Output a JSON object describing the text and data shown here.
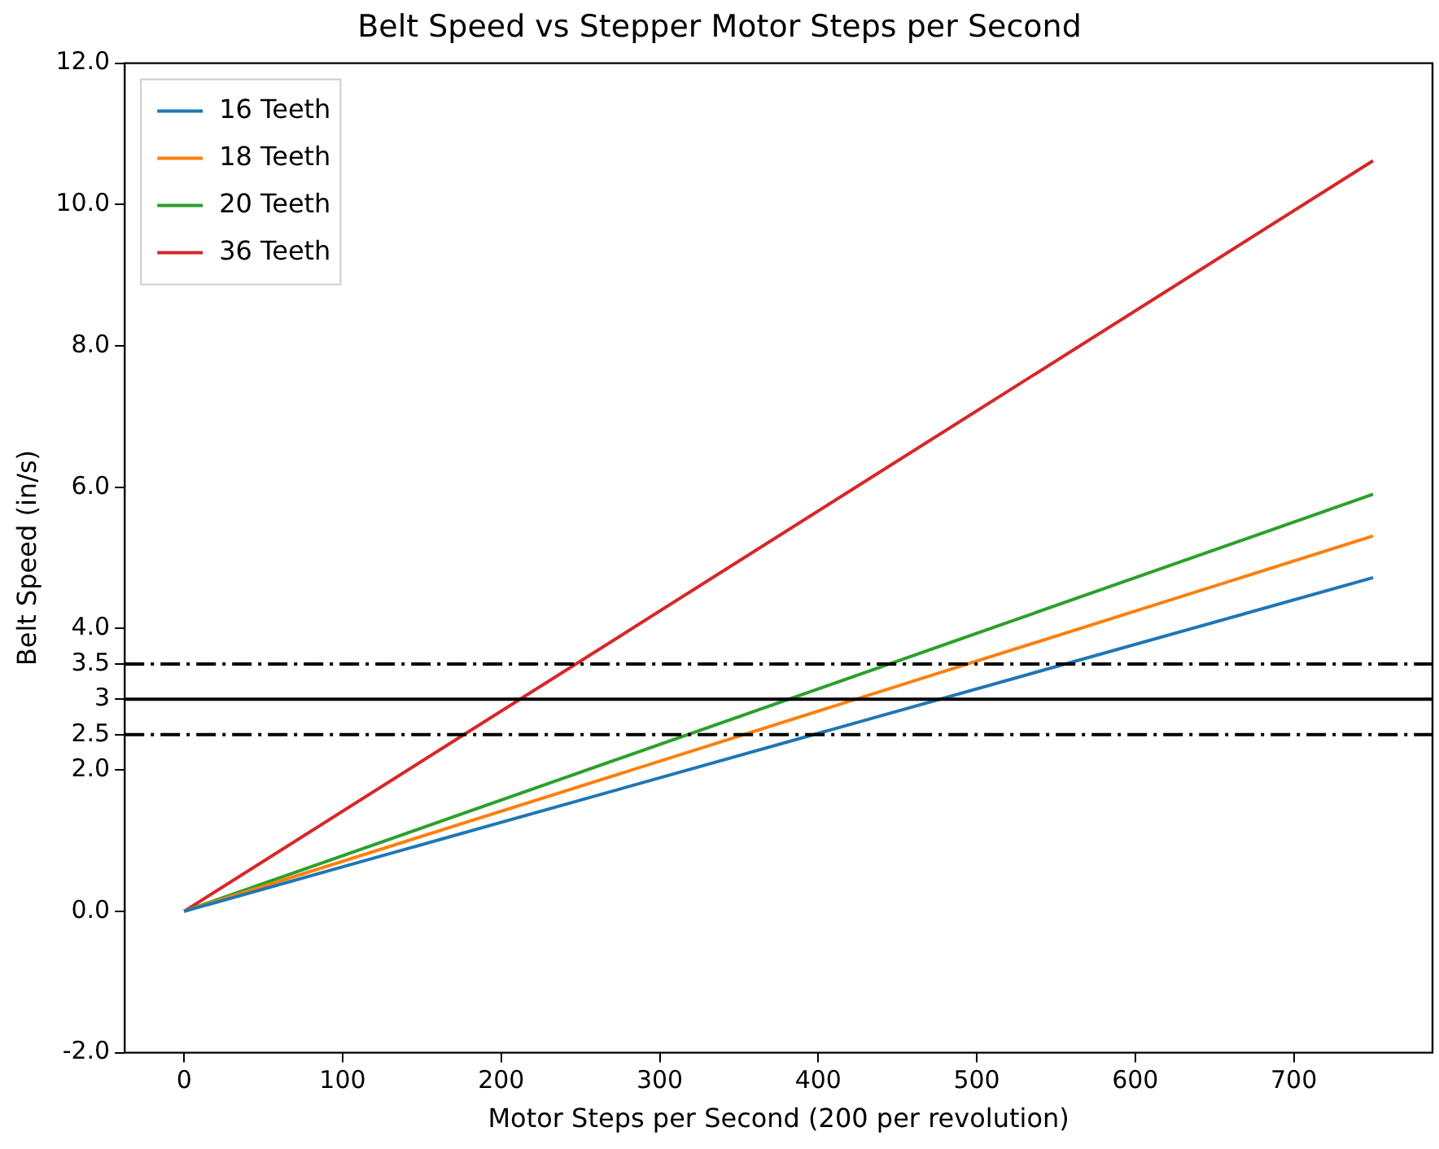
{
  "chart_data": {
    "type": "line",
    "title": "Belt Speed vs Stepper Motor Steps per Second",
    "xlabel": "Motor Steps per Second (200 per revolution)",
    "ylabel": "Belt Speed (in/s)",
    "x": [
      0,
      750
    ],
    "series": [
      {
        "name": "16 Teeth",
        "color": "#1f77b4",
        "values": [
          0,
          4.72
        ]
      },
      {
        "name": "18 Teeth",
        "color": "#ff7f0e",
        "values": [
          0,
          5.31
        ]
      },
      {
        "name": "20 Teeth",
        "color": "#2ca02c",
        "values": [
          0,
          5.9
        ]
      },
      {
        "name": "36 Teeth",
        "color": "#d62728",
        "values": [
          0,
          10.62
        ]
      }
    ],
    "xlim": [
      -37.5,
      787.5
    ],
    "xticks": [
      0,
      100,
      200,
      300,
      400,
      500,
      600,
      700
    ],
    "ylim": [
      -2,
      12
    ],
    "yticks": [
      {
        "value": -2,
        "label": "-2.0"
      },
      {
        "value": 0,
        "label": "0.0"
      },
      {
        "value": 2,
        "label": "2.0"
      },
      2.5,
      3,
      3.5,
      {
        "value": 4,
        "label": "4.0"
      },
      {
        "value": 6,
        "label": "6.0"
      },
      {
        "value": 8,
        "label": "8.0"
      },
      {
        "value": 10,
        "label": "10.0"
      },
      {
        "value": 12,
        "label": "12.0"
      }
    ],
    "ref_lines": [
      {
        "axis": "y",
        "value": 3.5,
        "color": "#000000",
        "line_style": "dashed"
      },
      {
        "axis": "y",
        "value": 3,
        "color": "#000000",
        "line_style": "solid"
      },
      {
        "axis": "y",
        "value": 2.5,
        "color": "#000000",
        "line_style": "dashed"
      }
    ],
    "grid": false,
    "legend": "top left",
    "marker": "none",
    "line_style": "solid"
  }
}
